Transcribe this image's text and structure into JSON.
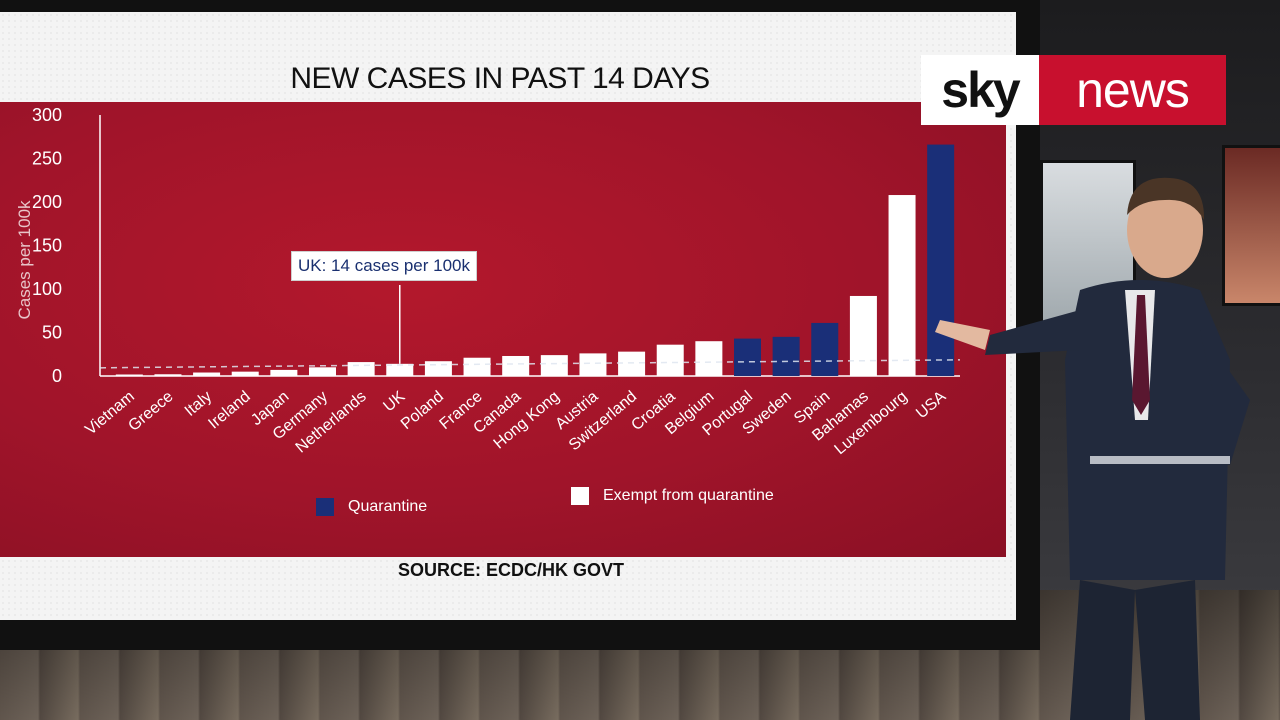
{
  "broadcast": {
    "logo_left": "sky",
    "logo_right": "news",
    "brand_red": "#c8102e",
    "panel_red": "#a0142a",
    "quarantine_color": "#1a2f78",
    "exempt_color": "#ffffff"
  },
  "chart_data": {
    "type": "bar",
    "title": "NEW CASES IN PAST 14 DAYS",
    "ylabel": "Cases per 100k",
    "xlabel": "",
    "ylim": [
      0,
      300
    ],
    "yticks": [
      0,
      50,
      100,
      150,
      200,
      250,
      300
    ],
    "grid": false,
    "legend_position": "bottom",
    "categories": [
      "Vietnam",
      "Greece",
      "Italy",
      "Ireland",
      "Japan",
      "Germany",
      "Netherlands",
      "UK",
      "Poland",
      "France",
      "Canada",
      "Hong Kong",
      "Austria",
      "Switzerland",
      "Croatia",
      "Belgium",
      "Portugal",
      "Sweden",
      "Spain",
      "Bahamas",
      "Luxembourg",
      "USA"
    ],
    "values": [
      0.3,
      2,
      4,
      5,
      7,
      10,
      16,
      14,
      17,
      21,
      23,
      24,
      26,
      28,
      36,
      40,
      43,
      45,
      61,
      92,
      208,
      266
    ],
    "status": [
      "exempt",
      "exempt",
      "exempt",
      "exempt",
      "exempt",
      "exempt",
      "exempt",
      "exempt",
      "exempt",
      "exempt",
      "exempt",
      "exempt",
      "exempt",
      "exempt",
      "exempt",
      "exempt",
      "quarantine",
      "quarantine",
      "quarantine",
      "exempt",
      "exempt",
      "quarantine"
    ],
    "legend": {
      "quarantine": "Quarantine",
      "exempt": "Exempt from quarantine"
    },
    "reference_line": {
      "value": 14,
      "style": "dashed"
    },
    "annotation": {
      "text": "UK: 14 cases per 100k",
      "category": "UK"
    },
    "source": "SOURCE: ECDC/HK GOVT"
  }
}
